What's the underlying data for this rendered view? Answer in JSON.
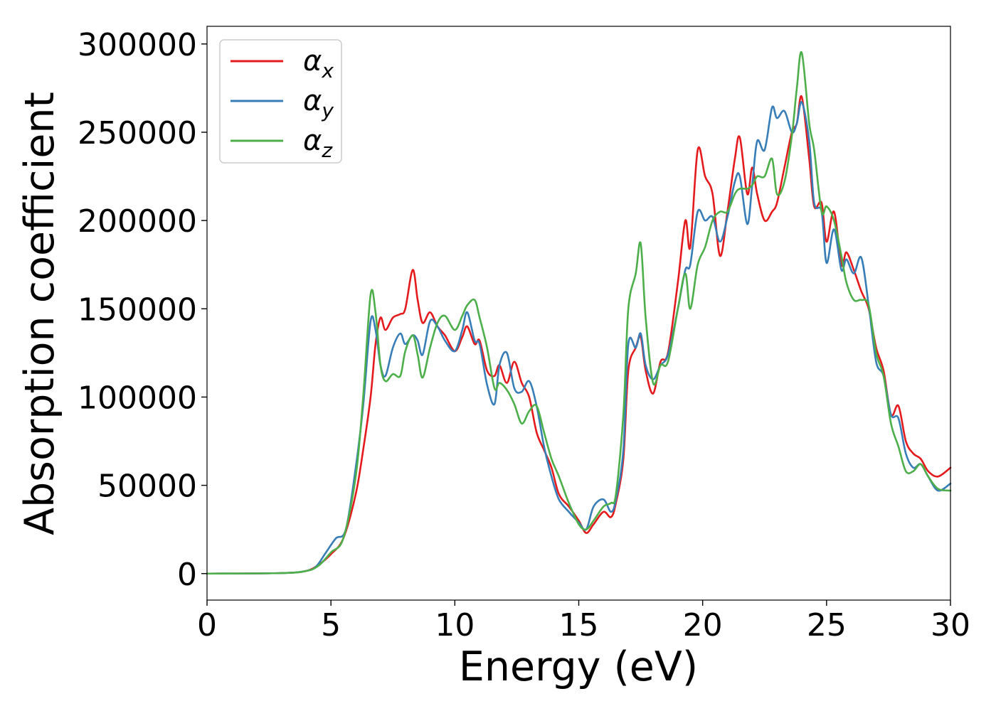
{
  "chart_data": {
    "type": "line",
    "xlabel": "Energy (eV)",
    "ylabel": "Absorption coefficient",
    "xlim": [
      0,
      30
    ],
    "ylim": [
      -15000,
      310000
    ],
    "xticks": [
      0,
      5,
      10,
      15,
      20,
      25,
      30
    ],
    "xtick_labels": [
      "0",
      "5",
      "10",
      "15",
      "20",
      "25",
      "30"
    ],
    "yticks": [
      0,
      50000,
      100000,
      150000,
      200000,
      250000,
      300000
    ],
    "ytick_labels": [
      "0",
      "50000",
      "100000",
      "150000",
      "200000",
      "250000",
      "300000"
    ],
    "grid": false,
    "legend_position": "top-left",
    "series": [
      {
        "name": "αx",
        "label_base": "α",
        "label_sub": "x",
        "color": "#e41a1c",
        "points": [
          [
            0,
            0
          ],
          [
            3,
            300
          ],
          [
            4,
            1500
          ],
          [
            4.5,
            5000
          ],
          [
            5,
            11000
          ],
          [
            5.5,
            20000
          ],
          [
            6,
            45000
          ],
          [
            6.3,
            70000
          ],
          [
            6.6,
            100000
          ],
          [
            6.8,
            130000
          ],
          [
            7,
            145000
          ],
          [
            7.2,
            138000
          ],
          [
            7.5,
            145000
          ],
          [
            7.8,
            147000
          ],
          [
            8,
            150000
          ],
          [
            8.3,
            172000
          ],
          [
            8.5,
            155000
          ],
          [
            8.7,
            142000
          ],
          [
            9,
            148000
          ],
          [
            9.3,
            140000
          ],
          [
            9.6,
            135000
          ],
          [
            10,
            126000
          ],
          [
            10.3,
            134000
          ],
          [
            10.5,
            140000
          ],
          [
            10.8,
            130000
          ],
          [
            11,
            132000
          ],
          [
            11.3,
            115000
          ],
          [
            11.6,
            112000
          ],
          [
            11.8,
            118000
          ],
          [
            12.1,
            108000
          ],
          [
            12.4,
            120000
          ],
          [
            12.7,
            108000
          ],
          [
            13,
            100000
          ],
          [
            13.3,
            80000
          ],
          [
            13.6,
            70000
          ],
          [
            13.9,
            60000
          ],
          [
            14.2,
            45000
          ],
          [
            14.6,
            38000
          ],
          [
            15,
            30000
          ],
          [
            15.3,
            23000
          ],
          [
            15.6,
            28000
          ],
          [
            16,
            35000
          ],
          [
            16.3,
            32000
          ],
          [
            16.5,
            40000
          ],
          [
            16.8,
            65000
          ],
          [
            17,
            115000
          ],
          [
            17.3,
            128000
          ],
          [
            17.5,
            134000
          ],
          [
            17.7,
            115000
          ],
          [
            18,
            102000
          ],
          [
            18.3,
            120000
          ],
          [
            18.6,
            125000
          ],
          [
            19,
            165000
          ],
          [
            19.3,
            200000
          ],
          [
            19.5,
            185000
          ],
          [
            19.8,
            240000
          ],
          [
            20.1,
            225000
          ],
          [
            20.4,
            215000
          ],
          [
            20.7,
            180000
          ],
          [
            21,
            205000
          ],
          [
            21.3,
            235000
          ],
          [
            21.5,
            247000
          ],
          [
            21.8,
            215000
          ],
          [
            22,
            230000
          ],
          [
            22.2,
            215000
          ],
          [
            22.5,
            200000
          ],
          [
            22.8,
            205000
          ],
          [
            23,
            210000
          ],
          [
            23.3,
            230000
          ],
          [
            23.6,
            250000
          ],
          [
            23.8,
            255000
          ],
          [
            24,
            270000
          ],
          [
            24.3,
            235000
          ],
          [
            24.5,
            208000
          ],
          [
            24.8,
            210000
          ],
          [
            25,
            188000
          ],
          [
            25.3,
            205000
          ],
          [
            25.6,
            175000
          ],
          [
            25.8,
            182000
          ],
          [
            26.1,
            172000
          ],
          [
            26.4,
            160000
          ],
          [
            26.7,
            150000
          ],
          [
            27,
            128000
          ],
          [
            27.3,
            115000
          ],
          [
            27.6,
            90000
          ],
          [
            27.9,
            95000
          ],
          [
            28.2,
            75000
          ],
          [
            28.5,
            68000
          ],
          [
            28.8,
            65000
          ],
          [
            29.1,
            58000
          ],
          [
            29.5,
            55000
          ],
          [
            30,
            60000
          ]
        ]
      },
      {
        "name": "αy",
        "label_base": "α",
        "label_sub": "y",
        "color": "#377eb8",
        "points": [
          [
            0,
            0
          ],
          [
            3,
            300
          ],
          [
            4,
            1500
          ],
          [
            4.4,
            4000
          ],
          [
            4.8,
            12000
          ],
          [
            5.2,
            20000
          ],
          [
            5.6,
            25000
          ],
          [
            6,
            60000
          ],
          [
            6.3,
            95000
          ],
          [
            6.6,
            143000
          ],
          [
            6.8,
            138000
          ],
          [
            7,
            118000
          ],
          [
            7.2,
            112000
          ],
          [
            7.5,
            128000
          ],
          [
            7.8,
            136000
          ],
          [
            8,
            130000
          ],
          [
            8.3,
            135000
          ],
          [
            8.5,
            132000
          ],
          [
            8.7,
            124000
          ],
          [
            9,
            143000
          ],
          [
            9.3,
            140000
          ],
          [
            9.6,
            132000
          ],
          [
            10,
            126000
          ],
          [
            10.3,
            138000
          ],
          [
            10.5,
            148000
          ],
          [
            10.8,
            132000
          ],
          [
            11,
            130000
          ],
          [
            11.3,
            107000
          ],
          [
            11.6,
            96000
          ],
          [
            11.8,
            118000
          ],
          [
            12.1,
            125000
          ],
          [
            12.4,
            105000
          ],
          [
            12.7,
            103000
          ],
          [
            13,
            109000
          ],
          [
            13.3,
            95000
          ],
          [
            13.6,
            72000
          ],
          [
            13.9,
            55000
          ],
          [
            14.2,
            42000
          ],
          [
            14.6,
            35000
          ],
          [
            15,
            29000
          ],
          [
            15.3,
            25000
          ],
          [
            15.6,
            38000
          ],
          [
            16,
            42000
          ],
          [
            16.3,
            35000
          ],
          [
            16.5,
            42000
          ],
          [
            16.8,
            70000
          ],
          [
            17,
            130000
          ],
          [
            17.3,
            128000
          ],
          [
            17.5,
            136000
          ],
          [
            17.7,
            118000
          ],
          [
            18,
            110000
          ],
          [
            18.3,
            118000
          ],
          [
            18.6,
            124000
          ],
          [
            19,
            150000
          ],
          [
            19.3,
            172000
          ],
          [
            19.5,
            175000
          ],
          [
            19.8,
            205000
          ],
          [
            20.1,
            200000
          ],
          [
            20.4,
            202000
          ],
          [
            20.7,
            188000
          ],
          [
            21,
            202000
          ],
          [
            21.3,
            222000
          ],
          [
            21.5,
            225000
          ],
          [
            21.8,
            198000
          ],
          [
            22,
            220000
          ],
          [
            22.2,
            245000
          ],
          [
            22.5,
            240000
          ],
          [
            22.8,
            264000
          ],
          [
            23,
            258000
          ],
          [
            23.3,
            262000
          ],
          [
            23.6,
            250000
          ],
          [
            23.8,
            255000
          ],
          [
            24,
            267000
          ],
          [
            24.3,
            245000
          ],
          [
            24.5,
            210000
          ],
          [
            24.8,
            205000
          ],
          [
            25,
            176000
          ],
          [
            25.3,
            195000
          ],
          [
            25.6,
            172000
          ],
          [
            25.8,
            178000
          ],
          [
            26.1,
            170000
          ],
          [
            26.4,
            179000
          ],
          [
            26.7,
            152000
          ],
          [
            27,
            120000
          ],
          [
            27.3,
            112000
          ],
          [
            27.6,
            90000
          ],
          [
            27.9,
            88000
          ],
          [
            28.2,
            68000
          ],
          [
            28.5,
            60000
          ],
          [
            28.8,
            62000
          ],
          [
            29.1,
            55000
          ],
          [
            29.5,
            47000
          ],
          [
            30,
            51000
          ]
        ]
      },
      {
        "name": "αz",
        "label_base": "α",
        "label_sub": "z",
        "color": "#4daf4a",
        "points": [
          [
            0,
            0
          ],
          [
            3,
            300
          ],
          [
            4,
            1500
          ],
          [
            4.5,
            4500
          ],
          [
            5,
            12000
          ],
          [
            5.5,
            20000
          ],
          [
            6,
            55000
          ],
          [
            6.3,
            100000
          ],
          [
            6.6,
            158000
          ],
          [
            6.8,
            148000
          ],
          [
            7,
            118000
          ],
          [
            7.2,
            109000
          ],
          [
            7.5,
            113000
          ],
          [
            7.8,
            112000
          ],
          [
            8,
            126000
          ],
          [
            8.3,
            135000
          ],
          [
            8.5,
            124000
          ],
          [
            8.7,
            111000
          ],
          [
            9,
            128000
          ],
          [
            9.3,
            142000
          ],
          [
            9.6,
            146000
          ],
          [
            10,
            138000
          ],
          [
            10.3,
            146000
          ],
          [
            10.5,
            152000
          ],
          [
            10.8,
            155000
          ],
          [
            11,
            145000
          ],
          [
            11.3,
            128000
          ],
          [
            11.6,
            105000
          ],
          [
            11.8,
            108000
          ],
          [
            12.1,
            104000
          ],
          [
            12.4,
            96000
          ],
          [
            12.7,
            85000
          ],
          [
            13,
            92000
          ],
          [
            13.3,
            95000
          ],
          [
            13.6,
            80000
          ],
          [
            13.9,
            65000
          ],
          [
            14.2,
            55000
          ],
          [
            14.6,
            40000
          ],
          [
            15,
            28000
          ],
          [
            15.3,
            25000
          ],
          [
            15.6,
            30000
          ],
          [
            16,
            38000
          ],
          [
            16.3,
            40000
          ],
          [
            16.5,
            45000
          ],
          [
            16.8,
            90000
          ],
          [
            17,
            150000
          ],
          [
            17.3,
            170000
          ],
          [
            17.5,
            187000
          ],
          [
            17.7,
            145000
          ],
          [
            18,
            108000
          ],
          [
            18.3,
            118000
          ],
          [
            18.6,
            120000
          ],
          [
            19,
            150000
          ],
          [
            19.3,
            170000
          ],
          [
            19.5,
            150000
          ],
          [
            19.8,
            175000
          ],
          [
            20.1,
            185000
          ],
          [
            20.4,
            200000
          ],
          [
            20.7,
            205000
          ],
          [
            21,
            205000
          ],
          [
            21.3,
            215000
          ],
          [
            21.5,
            218000
          ],
          [
            21.8,
            218000
          ],
          [
            22,
            220000
          ],
          [
            22.2,
            225000
          ],
          [
            22.5,
            225000
          ],
          [
            22.8,
            235000
          ],
          [
            23,
            215000
          ],
          [
            23.3,
            222000
          ],
          [
            23.6,
            248000
          ],
          [
            23.8,
            275000
          ],
          [
            24,
            295000
          ],
          [
            24.3,
            255000
          ],
          [
            24.5,
            240000
          ],
          [
            24.8,
            205000
          ],
          [
            25,
            208000
          ],
          [
            25.3,
            200000
          ],
          [
            25.6,
            180000
          ],
          [
            25.8,
            165000
          ],
          [
            26.1,
            155000
          ],
          [
            26.4,
            155000
          ],
          [
            26.7,
            152000
          ],
          [
            27,
            125000
          ],
          [
            27.3,
            112000
          ],
          [
            27.6,
            85000
          ],
          [
            27.9,
            72000
          ],
          [
            28.2,
            58000
          ],
          [
            28.5,
            58000
          ],
          [
            28.8,
            62000
          ],
          [
            29.1,
            55000
          ],
          [
            29.5,
            48000
          ],
          [
            30,
            47000
          ]
        ]
      }
    ]
  }
}
